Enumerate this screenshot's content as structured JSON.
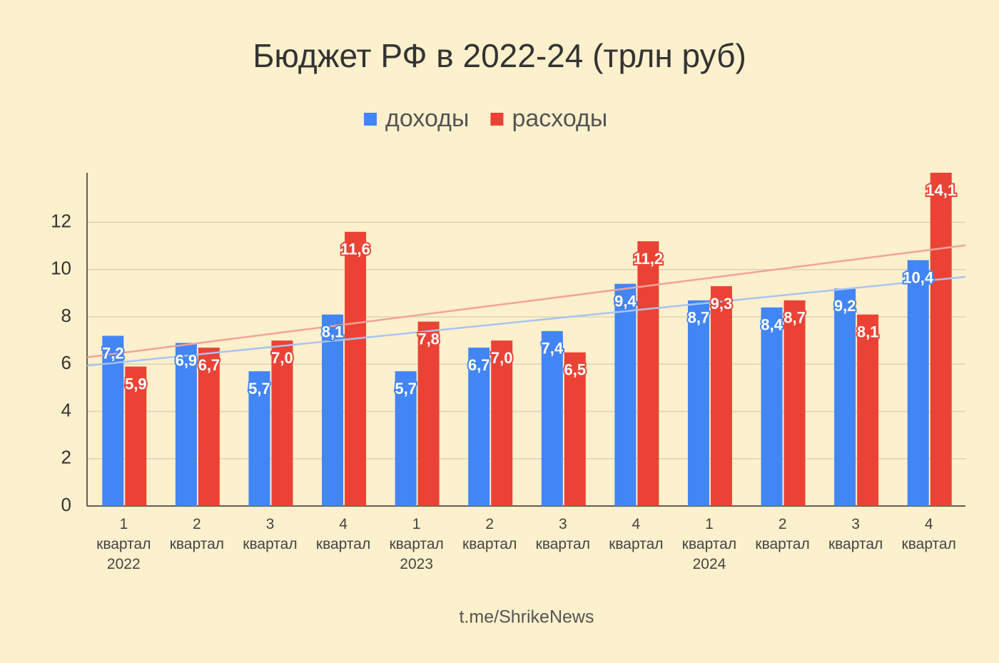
{
  "chart_data": {
    "type": "bar",
    "title": "Бюджет РФ в 2022-24 (трлн руб)",
    "categories": [
      "1\nквартал\n2022",
      "2\nквартал",
      "3\nквартал",
      "4\nквартал",
      "1\nквартал\n2023",
      "2\nквартал",
      "3\nквартал",
      "4\nквартал",
      "1\nквартал\n2024",
      "2\nквартал",
      "3\nквартал",
      "4\nквартал"
    ],
    "series": [
      {
        "name": "доходы",
        "color": "#4285f4",
        "trend_color": "#a9c4f0",
        "values": [
          7.2,
          6.9,
          5.7,
          8.1,
          5.7,
          6.7,
          7.4,
          9.4,
          8.7,
          8.4,
          9.2,
          10.4
        ],
        "value_labels": [
          "7,2",
          "6,9",
          "5,7",
          "8,1",
          "5,7",
          "6,7",
          "7,4",
          "9,4",
          "8,7",
          "8,4",
          "9,2",
          "10,4"
        ]
      },
      {
        "name": "расходы",
        "color": "#ea4335",
        "trend_color": "#f2a398",
        "values": [
          5.9,
          6.7,
          7.0,
          11.6,
          7.8,
          7.0,
          6.5,
          11.2,
          9.3,
          8.7,
          8.1,
          14.1
        ],
        "value_labels": [
          "5,9",
          "6,7",
          "7,0",
          "11,6",
          "7,8",
          "7,0",
          "6,5",
          "11,2",
          "9,3",
          "8,7",
          "8,1",
          "14,1"
        ]
      }
    ],
    "ylim": [
      0,
      14.1
    ],
    "yticks": [
      0,
      2,
      4,
      6,
      8,
      10,
      12
    ],
    "grid": true,
    "trendline": true,
    "legend": "top",
    "source": "t.me/ShrikeNews"
  }
}
